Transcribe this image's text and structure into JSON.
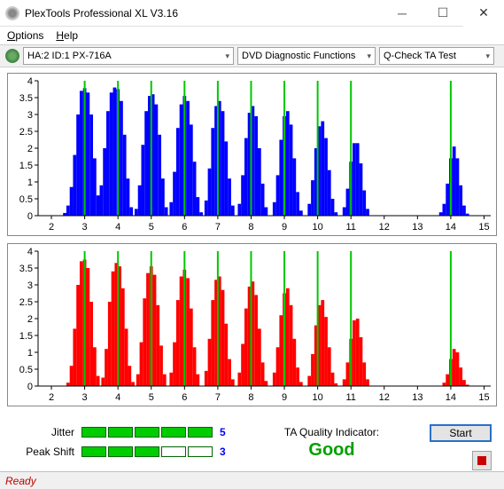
{
  "window": {
    "title": "PlexTools Professional XL V3.16"
  },
  "menu": {
    "options": "Options",
    "help": "Help"
  },
  "toolbar": {
    "device": "HA:2 ID:1  PX-716A",
    "category": "DVD Diagnostic Functions",
    "test": "Q-Check TA Test"
  },
  "chart_top": {
    "type": "bar-histogram",
    "bar_color": "#0000ff",
    "bg": "#ffffff",
    "green_line_color": "#00c800",
    "ylim": [
      0,
      4
    ],
    "yticks": [
      0,
      0.5,
      1,
      1.5,
      2,
      2.5,
      3,
      3.5,
      4
    ],
    "xlim": [
      1.6,
      15.2
    ],
    "xticks": [
      2,
      3,
      4,
      5,
      6,
      7,
      8,
      9,
      10,
      11,
      12,
      13,
      14,
      15
    ],
    "green_lines": [
      3,
      4,
      5,
      6,
      7,
      8,
      9,
      10,
      11,
      14
    ],
    "bars": [
      [
        2.4,
        0.08
      ],
      [
        2.5,
        0.3
      ],
      [
        2.6,
        0.85
      ],
      [
        2.7,
        1.8
      ],
      [
        2.8,
        3.0
      ],
      [
        2.9,
        3.7
      ],
      [
        3.0,
        3.78
      ],
      [
        3.1,
        3.65
      ],
      [
        3.2,
        3.0
      ],
      [
        3.3,
        1.7
      ],
      [
        3.4,
        0.6
      ],
      [
        3.5,
        0.9
      ],
      [
        3.6,
        2.0
      ],
      [
        3.7,
        3.1
      ],
      [
        3.8,
        3.65
      ],
      [
        3.9,
        3.8
      ],
      [
        4.0,
        3.75
      ],
      [
        4.1,
        3.4
      ],
      [
        4.2,
        2.4
      ],
      [
        4.3,
        1.1
      ],
      [
        4.4,
        0.25
      ],
      [
        4.55,
        0.2
      ],
      [
        4.65,
        0.9
      ],
      [
        4.75,
        2.1
      ],
      [
        4.85,
        3.1
      ],
      [
        4.95,
        3.55
      ],
      [
        5.05,
        3.6
      ],
      [
        5.15,
        3.3
      ],
      [
        5.25,
        2.4
      ],
      [
        5.35,
        1.1
      ],
      [
        5.45,
        0.25
      ],
      [
        5.6,
        0.4
      ],
      [
        5.7,
        1.3
      ],
      [
        5.8,
        2.6
      ],
      [
        5.9,
        3.3
      ],
      [
        6.0,
        3.55
      ],
      [
        6.1,
        3.4
      ],
      [
        6.2,
        2.7
      ],
      [
        6.3,
        1.6
      ],
      [
        6.4,
        0.55
      ],
      [
        6.5,
        0.1
      ],
      [
        6.65,
        0.45
      ],
      [
        6.75,
        1.4
      ],
      [
        6.85,
        2.6
      ],
      [
        6.95,
        3.25
      ],
      [
        7.05,
        3.4
      ],
      [
        7.15,
        3.1
      ],
      [
        7.25,
        2.2
      ],
      [
        7.35,
        1.1
      ],
      [
        7.45,
        0.3
      ],
      [
        7.65,
        0.35
      ],
      [
        7.75,
        1.2
      ],
      [
        7.85,
        2.3
      ],
      [
        7.95,
        3.05
      ],
      [
        8.05,
        3.25
      ],
      [
        8.15,
        2.95
      ],
      [
        8.25,
        2.0
      ],
      [
        8.35,
        0.95
      ],
      [
        8.45,
        0.25
      ],
      [
        8.7,
        0.4
      ],
      [
        8.8,
        1.2
      ],
      [
        8.9,
        2.25
      ],
      [
        9.0,
        2.95
      ],
      [
        9.1,
        3.1
      ],
      [
        9.2,
        2.7
      ],
      [
        9.3,
        1.7
      ],
      [
        9.4,
        0.7
      ],
      [
        9.5,
        0.15
      ],
      [
        9.75,
        0.35
      ],
      [
        9.85,
        1.05
      ],
      [
        9.95,
        2.0
      ],
      [
        10.05,
        2.65
      ],
      [
        10.15,
        2.8
      ],
      [
        10.25,
        2.3
      ],
      [
        10.35,
        1.35
      ],
      [
        10.45,
        0.5
      ],
      [
        10.55,
        0.1
      ],
      [
        10.8,
        0.25
      ],
      [
        10.9,
        0.8
      ],
      [
        11.0,
        1.6
      ],
      [
        11.1,
        2.15
      ],
      [
        11.2,
        2.15
      ],
      [
        11.3,
        1.55
      ],
      [
        11.4,
        0.75
      ],
      [
        11.5,
        0.2
      ],
      [
        13.7,
        0.1
      ],
      [
        13.8,
        0.35
      ],
      [
        13.9,
        0.95
      ],
      [
        14.0,
        1.7
      ],
      [
        14.1,
        2.05
      ],
      [
        14.2,
        1.7
      ],
      [
        14.3,
        0.9
      ],
      [
        14.4,
        0.3
      ],
      [
        14.5,
        0.06
      ]
    ]
  },
  "chart_bottom": {
    "bar_color": "#ff0000",
    "green_line_color": "#00c800",
    "ylim": [
      0,
      4
    ],
    "yticks": [
      0,
      0.5,
      1,
      1.5,
      2,
      2.5,
      3,
      3.5,
      4
    ],
    "xlim": [
      1.6,
      15.2
    ],
    "xticks": [
      2,
      3,
      4,
      5,
      6,
      7,
      8,
      9,
      10,
      11,
      12,
      13,
      14,
      15
    ],
    "green_lines": [
      3,
      4,
      5,
      6,
      7,
      8,
      9,
      10,
      11,
      14
    ],
    "bars": [
      [
        2.5,
        0.1
      ],
      [
        2.6,
        0.6
      ],
      [
        2.7,
        1.7
      ],
      [
        2.8,
        3.0
      ],
      [
        2.9,
        3.7
      ],
      [
        3.0,
        3.75
      ],
      [
        3.1,
        3.5
      ],
      [
        3.2,
        2.5
      ],
      [
        3.3,
        1.15
      ],
      [
        3.4,
        0.3
      ],
      [
        3.55,
        0.25
      ],
      [
        3.65,
        1.1
      ],
      [
        3.75,
        2.5
      ],
      [
        3.85,
        3.4
      ],
      [
        3.95,
        3.65
      ],
      [
        4.05,
        3.55
      ],
      [
        4.15,
        2.9
      ],
      [
        4.25,
        1.7
      ],
      [
        4.35,
        0.6
      ],
      [
        4.45,
        0.12
      ],
      [
        4.6,
        0.35
      ],
      [
        4.7,
        1.3
      ],
      [
        4.8,
        2.6
      ],
      [
        4.9,
        3.35
      ],
      [
        5.0,
        3.55
      ],
      [
        5.1,
        3.3
      ],
      [
        5.2,
        2.4
      ],
      [
        5.3,
        1.2
      ],
      [
        5.4,
        0.35
      ],
      [
        5.6,
        0.4
      ],
      [
        5.7,
        1.3
      ],
      [
        5.8,
        2.55
      ],
      [
        5.9,
        3.25
      ],
      [
        6.0,
        3.45
      ],
      [
        6.1,
        3.2
      ],
      [
        6.2,
        2.3
      ],
      [
        6.3,
        1.15
      ],
      [
        6.4,
        0.35
      ],
      [
        6.65,
        0.45
      ],
      [
        6.75,
        1.4
      ],
      [
        6.85,
        2.55
      ],
      [
        6.95,
        3.15
      ],
      [
        7.05,
        3.25
      ],
      [
        7.15,
        2.85
      ],
      [
        7.25,
        1.85
      ],
      [
        7.35,
        0.8
      ],
      [
        7.45,
        0.2
      ],
      [
        7.65,
        0.4
      ],
      [
        7.75,
        1.25
      ],
      [
        7.85,
        2.3
      ],
      [
        7.95,
        2.95
      ],
      [
        8.05,
        3.1
      ],
      [
        8.15,
        2.7
      ],
      [
        8.25,
        1.7
      ],
      [
        8.35,
        0.7
      ],
      [
        8.45,
        0.15
      ],
      [
        8.7,
        0.4
      ],
      [
        8.8,
        1.15
      ],
      [
        8.9,
        2.1
      ],
      [
        9.0,
        2.75
      ],
      [
        9.1,
        2.9
      ],
      [
        9.2,
        2.4
      ],
      [
        9.3,
        1.4
      ],
      [
        9.4,
        0.55
      ],
      [
        9.5,
        0.12
      ],
      [
        9.75,
        0.3
      ],
      [
        9.85,
        0.95
      ],
      [
        9.95,
        1.8
      ],
      [
        10.05,
        2.4
      ],
      [
        10.15,
        2.55
      ],
      [
        10.25,
        2.05
      ],
      [
        10.35,
        1.15
      ],
      [
        10.45,
        0.4
      ],
      [
        10.55,
        0.08
      ],
      [
        10.8,
        0.2
      ],
      [
        10.9,
        0.7
      ],
      [
        11.0,
        1.4
      ],
      [
        11.1,
        1.95
      ],
      [
        11.2,
        2.0
      ],
      [
        11.3,
        1.45
      ],
      [
        11.4,
        0.7
      ],
      [
        11.5,
        0.2
      ],
      [
        13.8,
        0.1
      ],
      [
        13.9,
        0.35
      ],
      [
        14.0,
        0.8
      ],
      [
        14.1,
        1.1
      ],
      [
        14.2,
        1.0
      ],
      [
        14.3,
        0.55
      ],
      [
        14.4,
        0.18
      ],
      [
        14.5,
        0.04
      ]
    ]
  },
  "meters": {
    "jitter_label": "Jitter",
    "jitter_fill": 5,
    "jitter_value": "5",
    "peakshift_label": "Peak Shift",
    "peakshift_fill": 3,
    "peakshift_value": "3"
  },
  "quality": {
    "label": "TA Quality Indicator:",
    "value": "Good",
    "color": "#00a000"
  },
  "buttons": {
    "start": "Start"
  },
  "status": {
    "text": "Ready"
  }
}
